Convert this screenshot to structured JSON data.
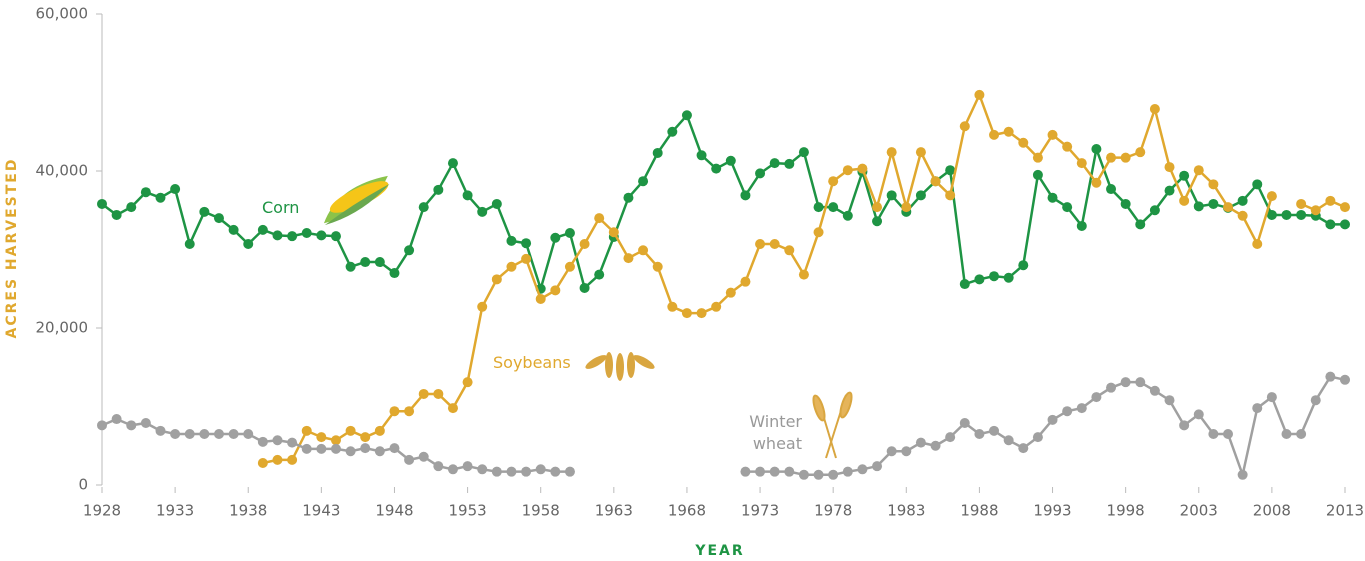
{
  "chart_data": {
    "type": "line",
    "x_label": "YEAR",
    "y_label": "ACRES HARVESTED",
    "x": [
      1928,
      1929,
      1930,
      1931,
      1932,
      1933,
      1934,
      1935,
      1936,
      1937,
      1938,
      1939,
      1940,
      1941,
      1942,
      1943,
      1944,
      1945,
      1946,
      1947,
      1948,
      1949,
      1950,
      1951,
      1952,
      1953,
      1954,
      1955,
      1956,
      1957,
      1958,
      1959,
      1960,
      1961,
      1962,
      1963,
      1964,
      1965,
      1966,
      1967,
      1968,
      1969,
      1970,
      1971,
      1972,
      1973,
      1974,
      1975,
      1976,
      1977,
      1978,
      1979,
      1980,
      1981,
      1982,
      1983,
      1984,
      1985,
      1986,
      1987,
      1988,
      1989,
      1990,
      1991,
      1992,
      1993,
      1994,
      1995,
      1996,
      1997,
      1998,
      1999,
      2000,
      2001,
      2002,
      2003,
      2004,
      2005,
      2006,
      2007,
      2008,
      2009,
      2010,
      2011,
      2012,
      2013
    ],
    "series": [
      {
        "name": "Corn",
        "color": "#1e9444",
        "values": [
          35800,
          34400,
          35400,
          37300,
          36600,
          37700,
          30700,
          34800,
          34000,
          32500,
          30700,
          32500,
          31800,
          31700,
          32100,
          31800,
          31700,
          27800,
          28400,
          28400,
          27000,
          29900,
          35400,
          37600,
          41000,
          36900,
          34800,
          35800,
          31100,
          30800,
          25000,
          31500,
          32100,
          25100,
          26800,
          31600,
          36600,
          38700,
          42300,
          45000,
          47100,
          42000,
          40300,
          41300,
          36900,
          39700,
          41000,
          40900,
          42400,
          35400,
          35400,
          34300,
          39900,
          33600,
          36900,
          34800,
          36900,
          38700,
          40100,
          25600,
          26200,
          26600,
          26400,
          28000,
          39500,
          36600,
          35400,
          33000,
          42800,
          37700,
          35800,
          33200,
          35000,
          37500,
          39400,
          35500,
          35800,
          35300,
          36200,
          38300,
          34400,
          34400,
          34400,
          34300,
          33200,
          33200
        ]
      },
      {
        "name": "Soybeans",
        "color": "#e0a82e",
        "values": [
          null,
          null,
          null,
          null,
          null,
          null,
          null,
          null,
          null,
          null,
          null,
          2800,
          3200,
          3200,
          6900,
          6100,
          5700,
          6900,
          6100,
          6900,
          9400,
          9400,
          11600,
          11600,
          9800,
          13100,
          22700,
          26200,
          27800,
          28800,
          23700,
          24800,
          27800,
          30700,
          34000,
          32200,
          28900,
          29900,
          27800,
          22700,
          21900,
          21900,
          22700,
          24500,
          25900,
          30700,
          30700,
          29900,
          26800,
          32200,
          38700,
          40100,
          40300,
          35400,
          42400,
          35400,
          42400,
          38700,
          36900,
          45700,
          49700,
          44600,
          45000,
          43600,
          41700,
          44600,
          43100,
          41000,
          38500,
          41700,
          41700,
          42400,
          47900,
          40500,
          36200,
          40100,
          38300,
          35400,
          34300,
          30700,
          36800,
          null,
          35800,
          35000,
          36200,
          35400
        ]
      },
      {
        "name": "Winter wheat",
        "color": "#a0a0a0",
        "values": [
          7600,
          8400,
          7600,
          7900,
          6900,
          6500,
          6500,
          6500,
          6500,
          6500,
          6500,
          5500,
          5700,
          5400,
          4600,
          4600,
          4600,
          4300,
          4700,
          4300,
          4700,
          3200,
          3600,
          2400,
          2000,
          2400,
          2000,
          1700,
          1700,
          1700,
          2000,
          1700,
          1700,
          null,
          null,
          null,
          null,
          null,
          null,
          null,
          null,
          null,
          null,
          null,
          1700,
          1700,
          1700,
          1700,
          1300,
          1300,
          1300,
          1700,
          2000,
          2400,
          4300,
          4300,
          5400,
          5000,
          6100,
          7900,
          6500,
          6900,
          5700,
          4700,
          6100,
          8300,
          9400,
          9800,
          11200,
          12400,
          13100,
          13100,
          12000,
          10800,
          7600,
          9000,
          6500,
          6500,
          1300,
          9800,
          11200,
          6500,
          6500,
          10800,
          13800,
          13400
        ]
      }
    ],
    "xlim": [
      1928,
      2013
    ],
    "xticks": [
      1928,
      1933,
      1938,
      1943,
      1948,
      1953,
      1958,
      1963,
      1968,
      1973,
      1978,
      1983,
      1988,
      1993,
      1998,
      2003,
      2008,
      2013
    ],
    "ylim": [
      0,
      60000
    ],
    "yticks": [
      0,
      {
        "value": 20000,
        "label": "20,000"
      },
      {
        "value": 40000,
        "label": "40,000"
      },
      {
        "value": 60000,
        "label": "60,000"
      }
    ],
    "grid": false
  }
}
